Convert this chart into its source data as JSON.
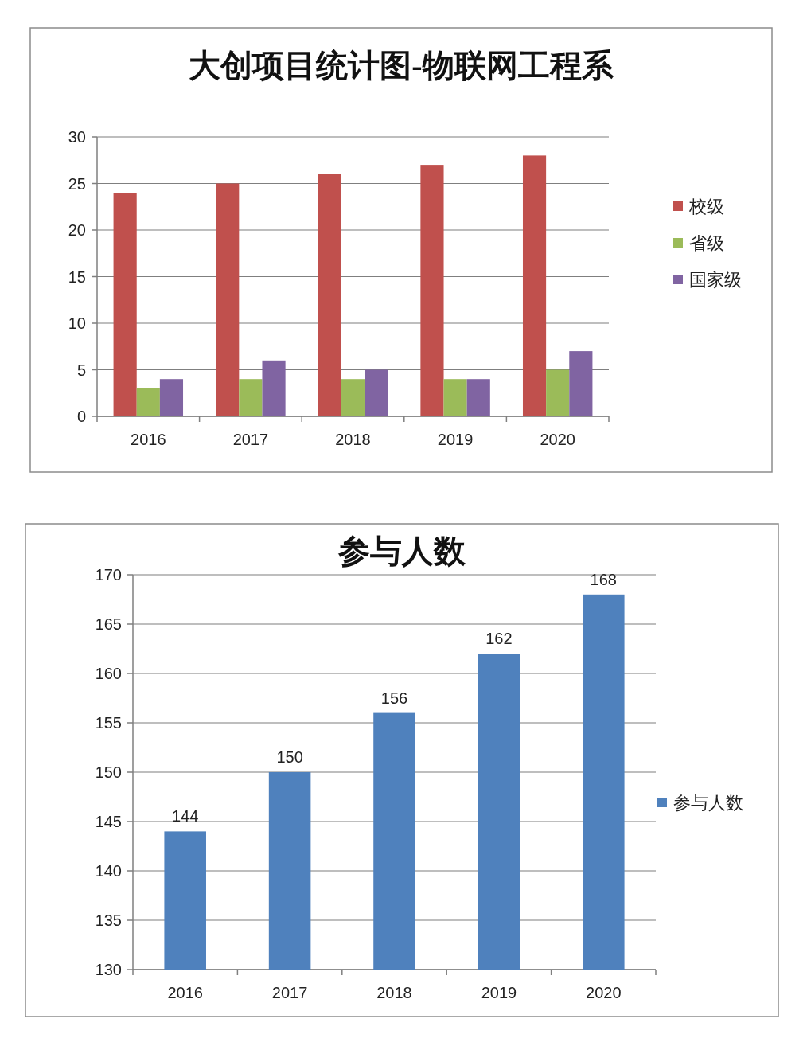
{
  "chart_data": [
    {
      "type": "bar",
      "title": "大创项目统计图-物联网工程系",
      "categories": [
        "2016",
        "2017",
        "2018",
        "2019",
        "2020"
      ],
      "series": [
        {
          "name": "校级",
          "color": "#c0504d",
          "values": [
            24,
            25,
            26,
            27,
            28
          ]
        },
        {
          "name": "省级",
          "color": "#9bbb59",
          "values": [
            3,
            4,
            4,
            4,
            5
          ]
        },
        {
          "name": "国家级",
          "color": "#8064a2",
          "values": [
            4,
            6,
            5,
            4,
            7
          ]
        }
      ],
      "ylim": [
        0,
        30
      ],
      "yticks": [
        0,
        5,
        10,
        15,
        20,
        25,
        30
      ],
      "grid": "y",
      "legend": "right"
    },
    {
      "type": "bar",
      "title": "参与人数",
      "categories": [
        "2016",
        "2017",
        "2018",
        "2019",
        "2020"
      ],
      "series": [
        {
          "name": "参与人数",
          "color": "#4f81bd",
          "values": [
            144,
            150,
            156,
            162,
            168
          ]
        }
      ],
      "ylim": [
        130,
        170
      ],
      "yticks": [
        130,
        135,
        140,
        145,
        150,
        155,
        160,
        165,
        170
      ],
      "grid": "y",
      "legend": "right",
      "data_labels": true
    }
  ]
}
